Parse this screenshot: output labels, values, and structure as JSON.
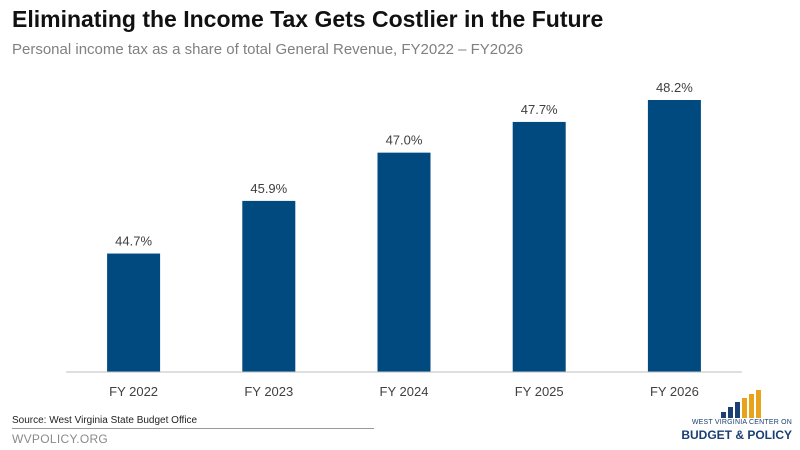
{
  "chart_data": {
    "type": "bar",
    "title": "Eliminating the Income Tax Gets Costlier in the Future",
    "subtitle": "Personal income tax as a share of total General Revenue, FY2022 – FY2026",
    "categories": [
      "FY 2022",
      "FY 2023",
      "FY 2024",
      "FY 2025",
      "FY 2026"
    ],
    "values": [
      44.7,
      45.9,
      47.0,
      47.7,
      48.2
    ],
    "data_labels": [
      "44.7%",
      "45.9%",
      "47.0%",
      "47.7%",
      "48.2%"
    ],
    "value_unit": "%",
    "xlabel": "",
    "ylabel": "",
    "ylim": [
      42,
      49
    ],
    "y_axis_visible": false,
    "grid": false,
    "bar_color": "#004a80"
  },
  "footer": {
    "source": "Source: West Virginia State Budget Office",
    "site": "WVPOLICY.ORG"
  },
  "logo": {
    "line1": "WEST VIRGINIA CENTER ON",
    "line2": "BUDGET & POLICY",
    "colors": [
      "#1a3f73",
      "#e8a21b"
    ]
  }
}
